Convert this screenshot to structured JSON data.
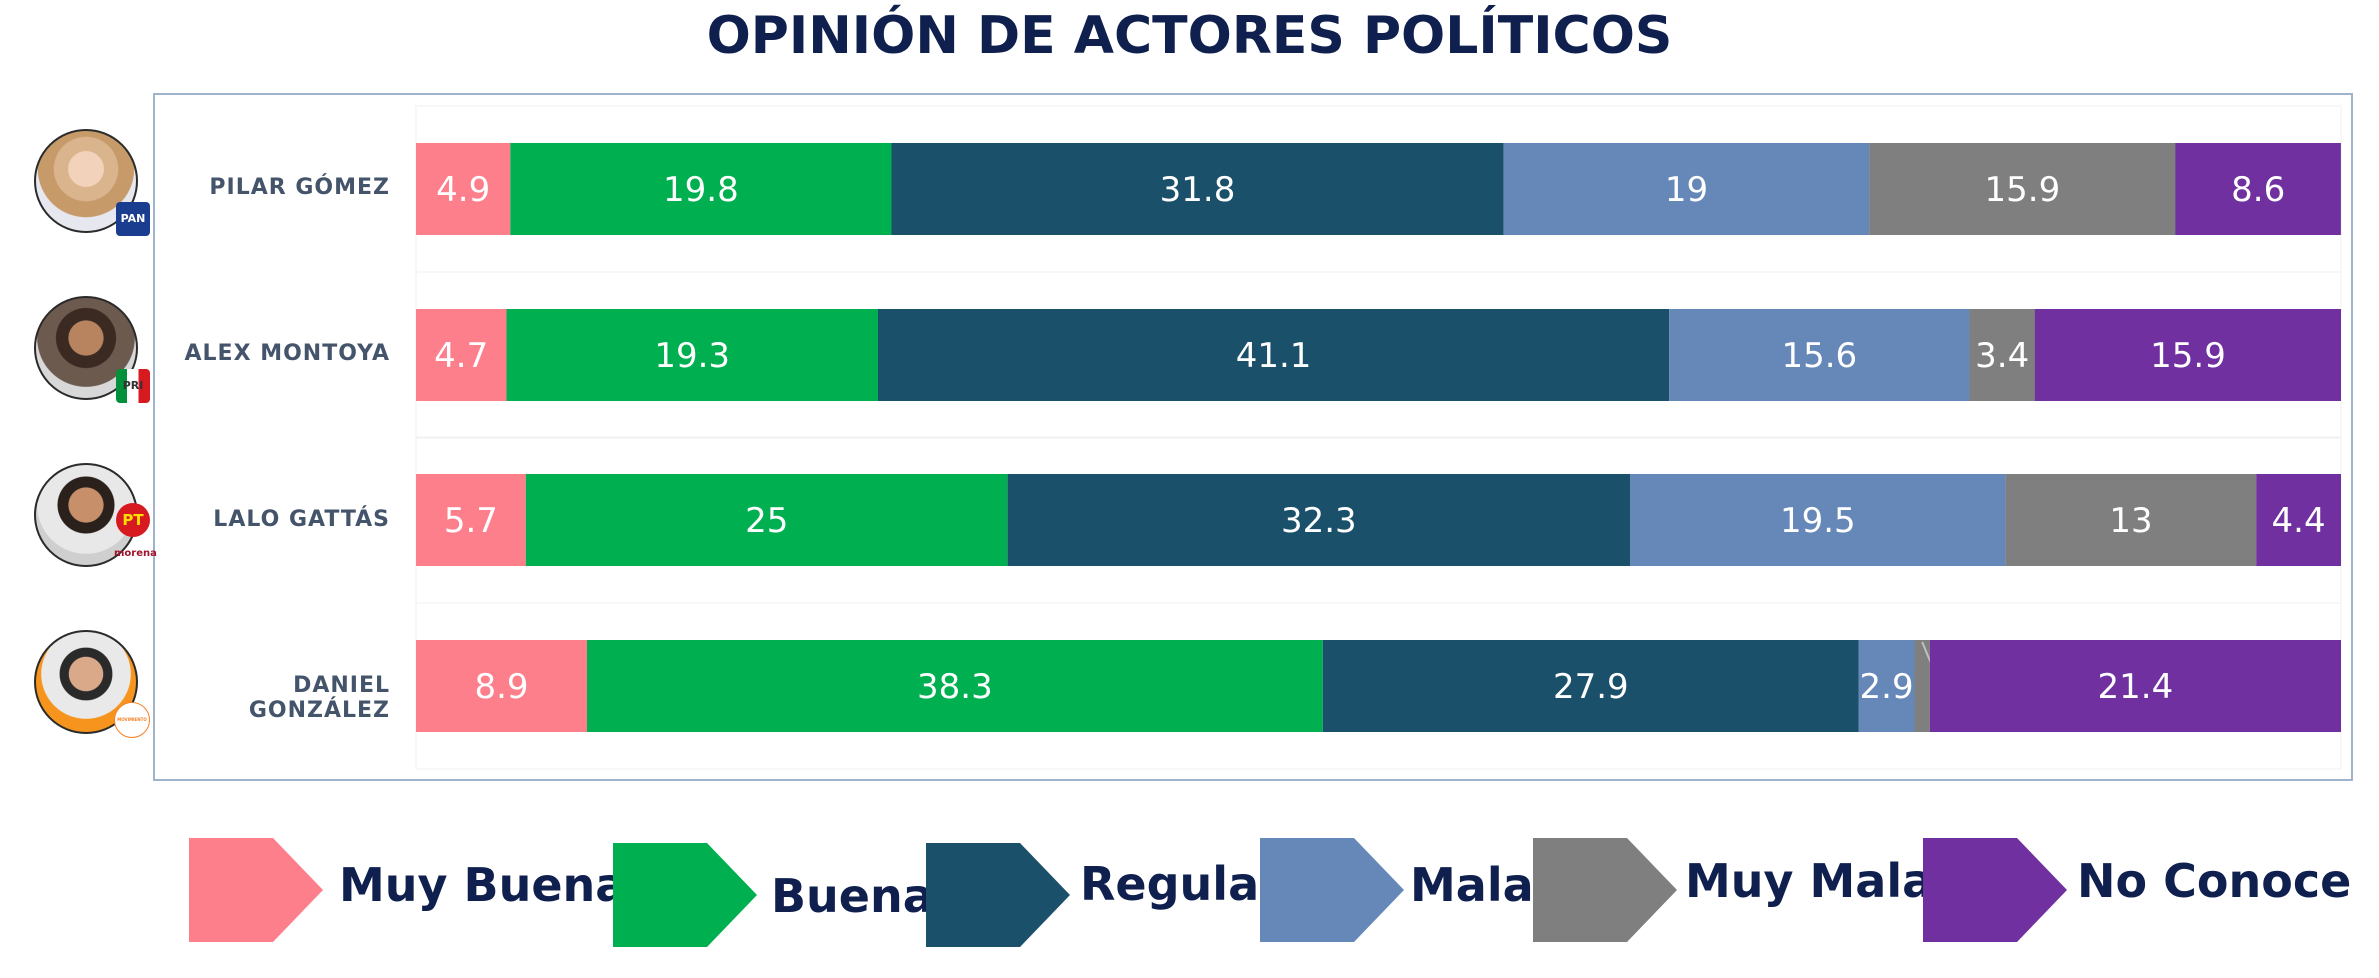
{
  "title": "OPINIÓN DE ACTORES POLÍTICOS",
  "candidates": [
    {
      "name": "PILAR GÓMEZ",
      "party": "PAN"
    },
    {
      "name": "ALEX MONTOYA",
      "party": "PRI"
    },
    {
      "name": "LALO GATTÁS",
      "party": "PT",
      "party_secondary": "morena"
    },
    {
      "name": "DANIEL GONZÁLEZ",
      "party": "MOVIMIENTO CIUDADANO"
    }
  ],
  "legend": [
    "Muy Buena",
    "Buena",
    "Regular",
    "Mala",
    "Muy Mala",
    "No Conoce"
  ],
  "colors": {
    "Muy Buena": "#fe7f8c",
    "Buena": "#00b050",
    "Regular": "#1b506b",
    "Mala": "#6688b8",
    "Muy Mala": "#7f7f7f",
    "No Conoce": "#7030a0"
  },
  "chart_data": {
    "type": "bar",
    "orientation": "horizontal",
    "stacked": true,
    "title": "OPINIÓN DE ACTORES POLÍTICOS",
    "categories": [
      "PILAR GÓMEZ",
      "ALEX MONTOYA",
      "LALO GATTÁS",
      "DANIEL GONZÁLEZ"
    ],
    "series": [
      {
        "name": "Muy Buena",
        "values": [
          4.9,
          4.7,
          5.7,
          8.9
        ]
      },
      {
        "name": "Buena",
        "values": [
          19.8,
          19.3,
          25,
          38.3
        ]
      },
      {
        "name": "Regular",
        "values": [
          31.8,
          41.1,
          32.3,
          27.9
        ]
      },
      {
        "name": "Mala",
        "values": [
          19,
          15.6,
          19.5,
          2.9
        ]
      },
      {
        "name": "Muy Mala",
        "values": [
          15.9,
          3.4,
          13,
          0.8
        ]
      },
      {
        "name": "No Conoce",
        "values": [
          8.6,
          15.9,
          4.4,
          21.4
        ]
      }
    ],
    "xlim": [
      0,
      100
    ],
    "legend_position": "bottom",
    "grid": false
  }
}
